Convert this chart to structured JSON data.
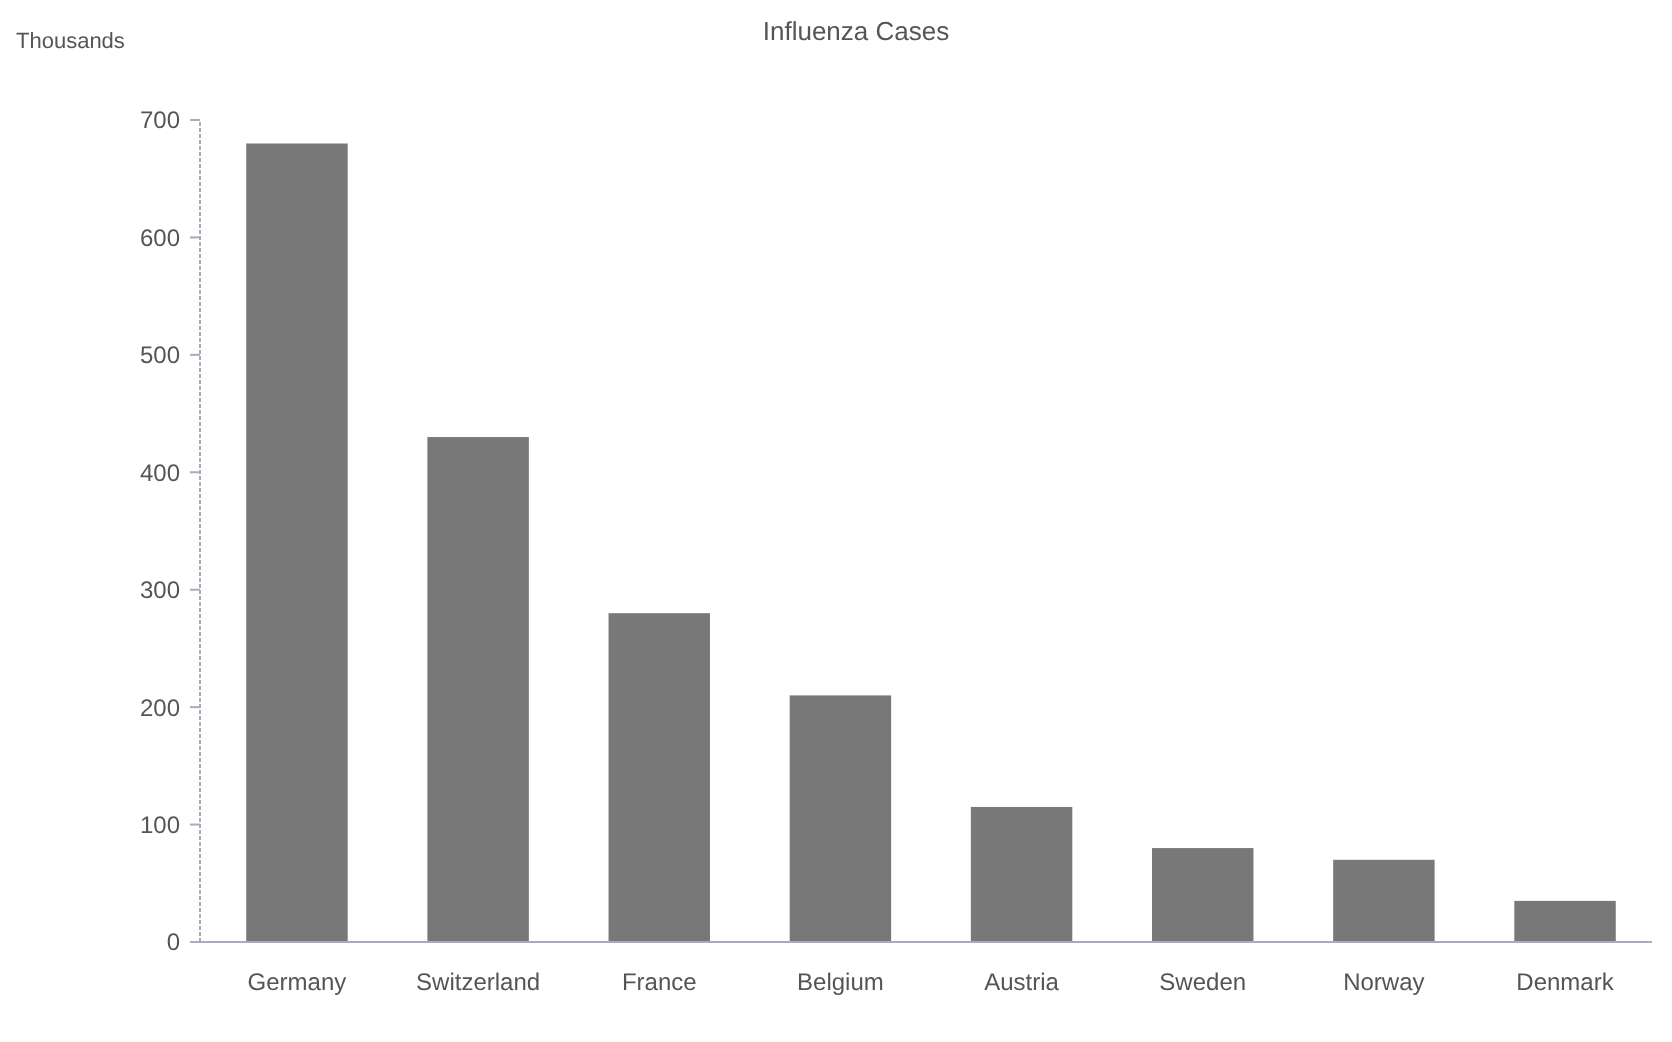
{
  "chart_data": {
    "type": "bar",
    "title": "Influenza Cases",
    "ylabel": "Thousands",
    "categories": [
      "Germany",
      "Switzerland",
      "France",
      "Belgium",
      "Austria",
      "Sweden",
      "Norway",
      "Denmark"
    ],
    "values": [
      680,
      430,
      280,
      210,
      115,
      80,
      70,
      35
    ],
    "color": "#787878",
    "ylim": [
      0,
      700
    ],
    "yticks": [
      0,
      100,
      200,
      300,
      400,
      500,
      600,
      700
    ],
    "grid": false
  }
}
